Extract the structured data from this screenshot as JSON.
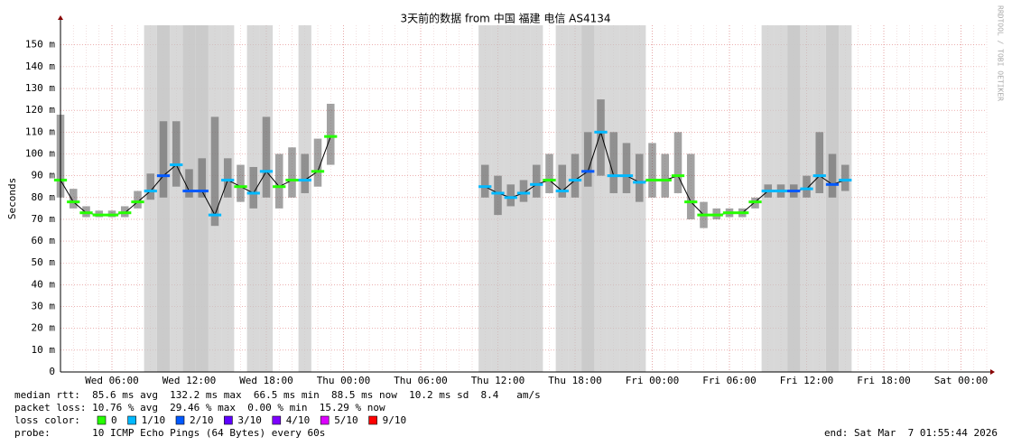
{
  "chart_data": {
    "type": "smokeping",
    "title": "3天前的数据 from 中国 福建 电信 AS4134",
    "y_label": "Seconds",
    "watermark": "RRDTOOL / TOBI OETIKER",
    "xlim": [
      2,
      74
    ],
    "xticks": [
      {
        "value": 6,
        "label": "Wed 06:00"
      },
      {
        "value": 12,
        "label": "Wed 12:00"
      },
      {
        "value": 18,
        "label": "Wed 18:00"
      },
      {
        "value": 24,
        "label": "Thu 00:00"
      },
      {
        "value": 30,
        "label": "Thu 06:00"
      },
      {
        "value": 36,
        "label": "Thu 12:00"
      },
      {
        "value": 42,
        "label": "Thu 18:00"
      },
      {
        "value": 48,
        "label": "Fri 00:00"
      },
      {
        "value": 54,
        "label": "Fri 06:00"
      },
      {
        "value": 60,
        "label": "Fri 12:00"
      },
      {
        "value": 66,
        "label": "Fri 18:00"
      },
      {
        "value": 72,
        "label": "Sat 00:00"
      }
    ],
    "ylim": [
      0,
      159
    ],
    "yticks": [
      0,
      {
        "value": 10,
        "label": "10 m"
      },
      {
        "value": 20,
        "label": "20 m"
      },
      {
        "value": 30,
        "label": "30 m"
      },
      {
        "value": 40,
        "label": "40 m"
      },
      {
        "value": 50,
        "label": "50 m"
      },
      {
        "value": 60,
        "label": "60 m"
      },
      {
        "value": 70,
        "label": "70 m"
      },
      {
        "value": 80,
        "label": "80 m"
      },
      {
        "value": 90,
        "label": "90 m"
      },
      {
        "value": 100,
        "label": "100 m"
      },
      {
        "value": 110,
        "label": "110 m"
      },
      {
        "value": 120,
        "label": "120 m"
      },
      {
        "value": 130,
        "label": "130 m"
      },
      {
        "value": 140,
        "label": "140 m"
      },
      {
        "value": 150,
        "label": "150 m"
      }
    ],
    "grid": true,
    "x": [
      2,
      3,
      4,
      5,
      6,
      7,
      8,
      9,
      10,
      11,
      12,
      13,
      14,
      15,
      16,
      17,
      18,
      19,
      20,
      21,
      22,
      23,
      24,
      25,
      26,
      27,
      28,
      29,
      30,
      31,
      32,
      33,
      34,
      35,
      36,
      37,
      38,
      39,
      40,
      41,
      42,
      43,
      44,
      45,
      46,
      47,
      48,
      49,
      50,
      51,
      52,
      53,
      54,
      55,
      56,
      57,
      58,
      59,
      60,
      61,
      62,
      63,
      64,
      65,
      66,
      67,
      68,
      69,
      70,
      71,
      72,
      73,
      74
    ],
    "series": [
      {
        "name": "median rtt:",
        "color": "#000000",
        "values": [
          88,
          78,
          73,
          72,
          72,
          73,
          78,
          83,
          90,
          95,
          83,
          83,
          72,
          88,
          85,
          82,
          92,
          85,
          88,
          88,
          92,
          108,
          null,
          null,
          null,
          null,
          null,
          null,
          null,
          null,
          null,
          null,
          null,
          85,
          82,
          80,
          82,
          86,
          88,
          83,
          88,
          92,
          110,
          90,
          90,
          87,
          88,
          88,
          90,
          78,
          72,
          72,
          73,
          73,
          78,
          83,
          83,
          83,
          84,
          90,
          86,
          88,
          null,
          null,
          null,
          null,
          null,
          null,
          null,
          null,
          null,
          null,
          null
        ],
        "high": [
          118,
          84,
          76,
          74,
          74,
          76,
          83,
          91,
          115,
          115,
          93,
          98,
          117,
          98,
          95,
          94,
          117,
          100,
          103,
          100,
          107,
          123,
          null,
          null,
          null,
          null,
          null,
          null,
          null,
          null,
          null,
          null,
          null,
          95,
          90,
          86,
          88,
          95,
          100,
          95,
          100,
          110,
          125,
          110,
          105,
          100,
          105,
          100,
          110,
          100,
          78,
          75,
          75,
          75,
          80,
          86,
          86,
          86,
          90,
          110,
          100,
          95,
          null,
          null,
          null,
          null,
          null,
          null,
          null,
          null,
          null,
          null,
          null
        ],
        "low": [
          80,
          75,
          71,
          71,
          71,
          71,
          75,
          79,
          80,
          85,
          80,
          80,
          67,
          80,
          78,
          75,
          80,
          75,
          80,
          82,
          85,
          95,
          null,
          null,
          null,
          null,
          null,
          null,
          null,
          null,
          null,
          null,
          null,
          80,
          72,
          76,
          78,
          80,
          82,
          80,
          80,
          85,
          90,
          82,
          82,
          78,
          80,
          80,
          82,
          70,
          66,
          70,
          71,
          71,
          75,
          80,
          80,
          80,
          80,
          82,
          80,
          83,
          null,
          null,
          null,
          null,
          null,
          null,
          null,
          null,
          null,
          null,
          null
        ],
        "loss": [
          0,
          0,
          0,
          0,
          0,
          0,
          0,
          1,
          2,
          1,
          2,
          2,
          1,
          1,
          0,
          1,
          1,
          0,
          0,
          1,
          0,
          0,
          null,
          null,
          null,
          null,
          null,
          null,
          null,
          null,
          null,
          null,
          null,
          1,
          1,
          1,
          1,
          1,
          0,
          1,
          1,
          2,
          1,
          1,
          1,
          1,
          0,
          0,
          0,
          0,
          0,
          0,
          0,
          0,
          0,
          1,
          1,
          2,
          1,
          1,
          2,
          1,
          null,
          null,
          null,
          null,
          null,
          null,
          null,
          null,
          null,
          null,
          null
        ]
      }
    ],
    "stats": [
      "median rtt:  85.6 ms avg  132.2 ms max  66.5 ms min  88.5 ms now  10.2 ms sd  8.4   am/s",
      "packet loss: 10.76 % avg  29.46 % max  0.00 % min  15.29 % now"
    ],
    "loss_legend_title": "loss color:",
    "loss_legend": [
      {
        "label": "0",
        "color": "#26ff00"
      },
      {
        "label": "1/10",
        "color": "#00b8ff"
      },
      {
        "label": "2/10",
        "color": "#0059ff"
      },
      {
        "label": "3/10",
        "color": "#5e00ff"
      },
      {
        "label": "4/10",
        "color": "#7e00ff"
      },
      {
        "label": "5/10",
        "color": "#dd00ff"
      },
      {
        "label": "9/10",
        "color": "#ff0000"
      }
    ],
    "probe": "probe:       10 ICMP Echo Pings (64 Bytes) every 60s",
    "end": "end: Sat Mar  7 01:55:44 2026"
  }
}
